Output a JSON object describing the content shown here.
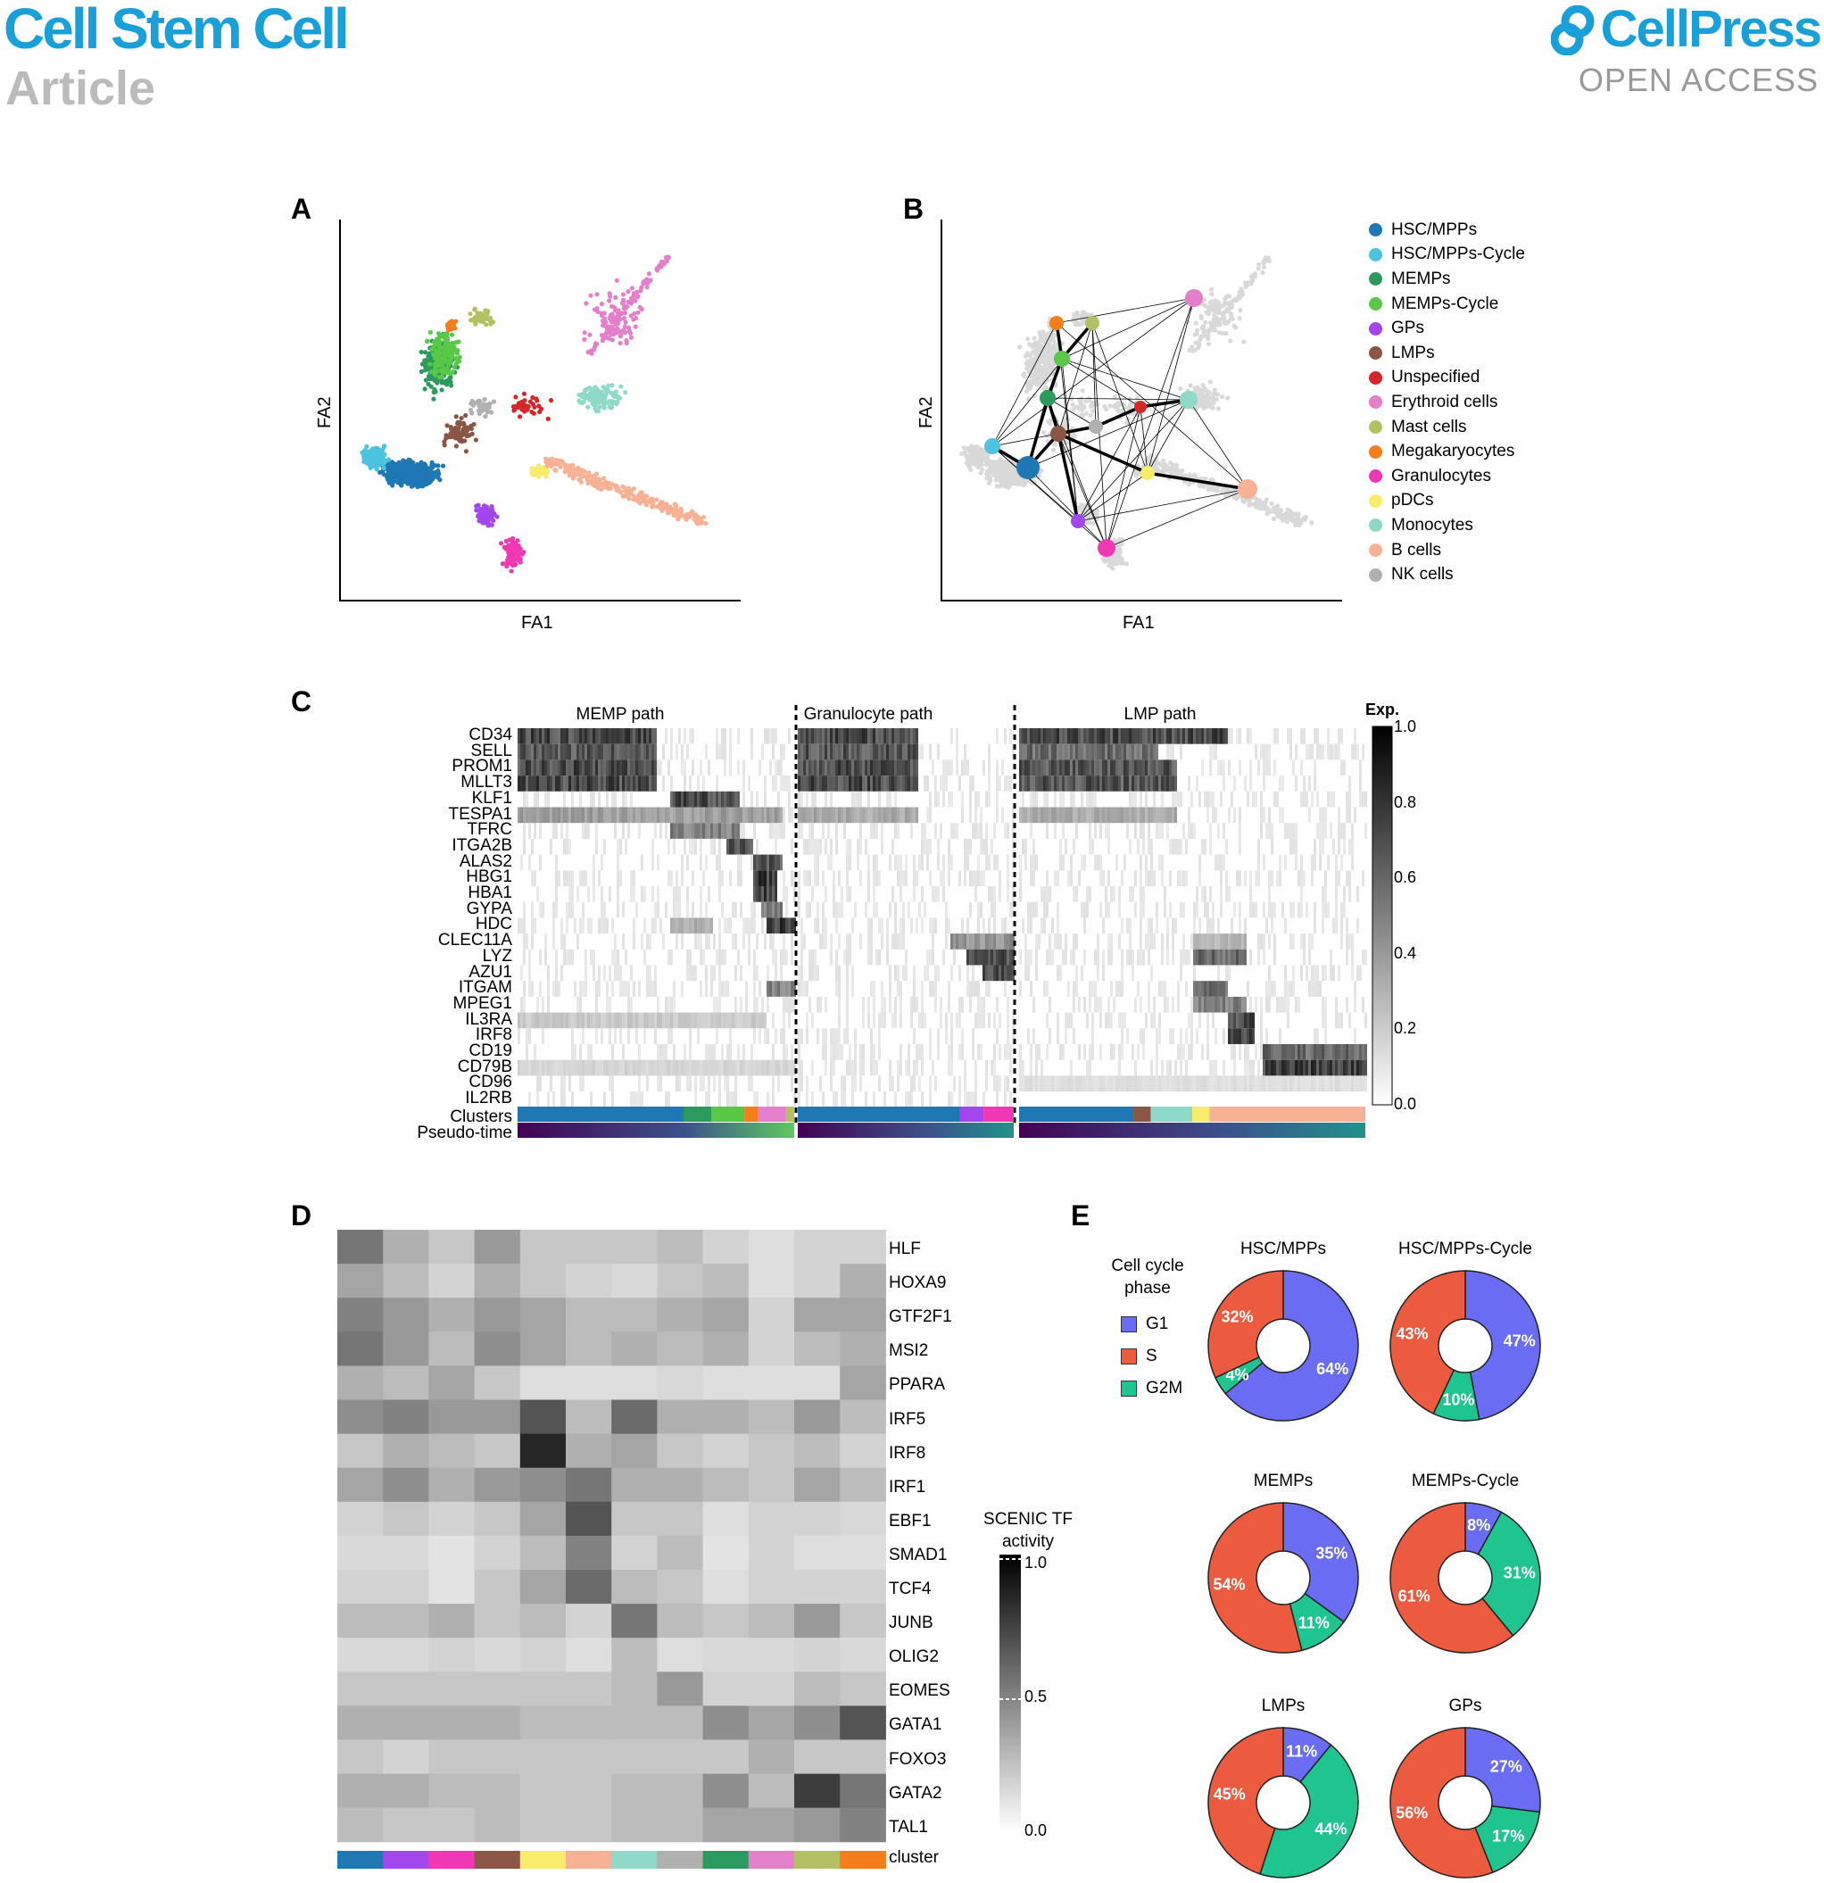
{
  "header": {
    "journal": "Cell Stem Cell",
    "section": "Article",
    "publisher": "CellPress",
    "access": "OPEN ACCESS"
  },
  "panels": {
    "a": "A",
    "b": "B",
    "c": "C",
    "d": "D",
    "e": "E"
  },
  "scatter": {
    "xlabel": "FA1",
    "ylabel": "FA2"
  },
  "clusters": [
    {
      "name": "HSC/MPPs",
      "color": "#1f77b4"
    },
    {
      "name": "HSC/MPPs-Cycle",
      "color": "#4cc3e0"
    },
    {
      "name": "MEMPs",
      "color": "#2a9a5e"
    },
    {
      "name": "MEMPs-Cycle",
      "color": "#59c847"
    },
    {
      "name": "GPs",
      "color": "#a446ee"
    },
    {
      "name": "LMPs",
      "color": "#8c5646"
    },
    {
      "name": "Unspecified",
      "color": "#d62728"
    },
    {
      "name": "Erythroid cells",
      "color": "#e47fcb"
    },
    {
      "name": "Mast cells",
      "color": "#b4c163"
    },
    {
      "name": "Megakaryocytes",
      "color": "#f57d1b"
    },
    {
      "name": "Granulocytes",
      "color": "#f038b4"
    },
    {
      "name": "pDCs",
      "color": "#f7ec6c"
    },
    {
      "name": "Monocytes",
      "color": "#8fd9c8"
    },
    {
      "name": "B cells",
      "color": "#f7b295"
    },
    {
      "name": "NK cells",
      "color": "#b0b0b0"
    }
  ],
  "heatmap_c": {
    "paths": [
      "MEMP path",
      "Granulocyte path",
      "LMP path"
    ],
    "genes": [
      "CD34",
      "SELL",
      "PROM1",
      "MLLT3",
      "KLF1",
      "TESPA1",
      "TFRC",
      "ITGA2B",
      "ALAS2",
      "HBG1",
      "HBA1",
      "GYPA",
      "HDC",
      "CLEC11A",
      "LYZ",
      "AZU1",
      "ITGAM",
      "MPEG1",
      "IL3RA",
      "IRF8",
      "CD19",
      "CD79B",
      "CD96",
      "IL2RB"
    ],
    "row_clusters": "Clusters",
    "row_pseudotime": "Pseudo-time",
    "colorbar_title": "Exp.",
    "colorbar_ticks": [
      "1.0",
      "0.8",
      "0.6",
      "0.4",
      "0.2",
      "0.0"
    ]
  },
  "heatmap_d": {
    "tfs": [
      "HLF",
      "HOXA9",
      "GTF2F1",
      "MSI2",
      "PPARA",
      "IRF5",
      "IRF8",
      "IRF1",
      "EBF1",
      "SMAD1",
      "TCF4",
      "JUNB",
      "OLIG2",
      "EOMES",
      "GATA1",
      "FOXO3",
      "GATA2",
      "TAL1"
    ],
    "row_cluster": "cluster",
    "colorbar_title": "SCENIC TF activity",
    "colorbar_ticks": [
      "1.0",
      "0.5",
      "0.0"
    ],
    "cluster_colors": [
      "#1f77b4",
      "#a446ee",
      "#f038b4",
      "#8c5646",
      "#f7ec6c",
      "#f7b295",
      "#8fd9c8",
      "#b0b0b0",
      "#2a9a5e",
      "#e47fcb",
      "#b4c163",
      "#f57d1b"
    ],
    "values": [
      [
        0.55,
        0.3,
        0.2,
        0.4,
        0.2,
        0.2,
        0.2,
        0.25,
        0.15,
        0.1,
        0.15,
        0.15
      ],
      [
        0.35,
        0.25,
        0.15,
        0.3,
        0.2,
        0.15,
        0.12,
        0.2,
        0.25,
        0.1,
        0.15,
        0.3
      ],
      [
        0.5,
        0.4,
        0.3,
        0.4,
        0.35,
        0.25,
        0.25,
        0.3,
        0.35,
        0.15,
        0.35,
        0.35
      ],
      [
        0.55,
        0.4,
        0.25,
        0.45,
        0.35,
        0.25,
        0.3,
        0.25,
        0.3,
        0.15,
        0.25,
        0.3
      ],
      [
        0.3,
        0.25,
        0.35,
        0.2,
        0.1,
        0.1,
        0.1,
        0.12,
        0.1,
        0.1,
        0.1,
        0.35
      ],
      [
        0.45,
        0.5,
        0.4,
        0.4,
        0.7,
        0.25,
        0.6,
        0.3,
        0.3,
        0.25,
        0.4,
        0.25
      ],
      [
        0.2,
        0.3,
        0.25,
        0.2,
        0.9,
        0.3,
        0.35,
        0.2,
        0.15,
        0.2,
        0.25,
        0.15
      ],
      [
        0.35,
        0.45,
        0.3,
        0.4,
        0.45,
        0.55,
        0.3,
        0.3,
        0.25,
        0.2,
        0.35,
        0.25
      ],
      [
        0.15,
        0.2,
        0.15,
        0.2,
        0.35,
        0.7,
        0.2,
        0.2,
        0.1,
        0.15,
        0.15,
        0.12
      ],
      [
        0.12,
        0.12,
        0.08,
        0.15,
        0.25,
        0.5,
        0.15,
        0.25,
        0.08,
        0.15,
        0.1,
        0.1
      ],
      [
        0.15,
        0.15,
        0.08,
        0.2,
        0.35,
        0.6,
        0.25,
        0.2,
        0.1,
        0.15,
        0.15,
        0.15
      ],
      [
        0.25,
        0.25,
        0.3,
        0.2,
        0.25,
        0.15,
        0.55,
        0.25,
        0.2,
        0.25,
        0.4,
        0.2
      ],
      [
        0.12,
        0.12,
        0.15,
        0.12,
        0.15,
        0.1,
        0.25,
        0.1,
        0.12,
        0.12,
        0.15,
        0.12
      ],
      [
        0.2,
        0.2,
        0.2,
        0.2,
        0.2,
        0.2,
        0.25,
        0.4,
        0.15,
        0.15,
        0.25,
        0.2
      ],
      [
        0.3,
        0.3,
        0.3,
        0.3,
        0.25,
        0.25,
        0.25,
        0.25,
        0.45,
        0.35,
        0.45,
        0.7
      ],
      [
        0.2,
        0.15,
        0.2,
        0.2,
        0.2,
        0.2,
        0.2,
        0.2,
        0.2,
        0.3,
        0.2,
        0.2
      ],
      [
        0.3,
        0.3,
        0.25,
        0.25,
        0.2,
        0.2,
        0.25,
        0.25,
        0.45,
        0.25,
        0.8,
        0.55
      ],
      [
        0.25,
        0.2,
        0.2,
        0.25,
        0.2,
        0.2,
        0.25,
        0.25,
        0.35,
        0.35,
        0.4,
        0.5
      ]
    ]
  },
  "cell_cycle": {
    "legend_title": "Cell cycle phase",
    "phases": [
      {
        "name": "G1",
        "color": "#6a6cf3"
      },
      {
        "name": "S",
        "color": "#ec5a40"
      },
      {
        "name": "G2M",
        "color": "#20c48f"
      }
    ],
    "pies": [
      {
        "title": "HSC/MPPs",
        "G1": 64,
        "S": 32,
        "G2M": 4,
        "labels": {
          "G1": "64%",
          "S": "32%",
          "G2M": "4%"
        }
      },
      {
        "title": "HSC/MPPs-Cycle",
        "G1": 47,
        "S": 43,
        "G2M": 10,
        "labels": {
          "G1": "47%",
          "S": "43%",
          "G2M": "10%"
        }
      },
      {
        "title": "MEMPs",
        "G1": 35,
        "S": 54,
        "G2M": 11,
        "labels": {
          "G1": "35%",
          "S": "54%",
          "G2M": "11%"
        }
      },
      {
        "title": "MEMPs-Cycle",
        "G1": 8,
        "S": 61,
        "G2M": 31,
        "labels": {
          "G1": "8%",
          "S": "61%",
          "G2M": "31%"
        }
      },
      {
        "title": "LMPs",
        "G1": 11,
        "S": 45,
        "G2M": 44,
        "labels": {
          "G1": "11%",
          "S": "45%",
          "G2M": "44%"
        }
      },
      {
        "title": "GPs",
        "G1": 27,
        "S": 56,
        "G2M": 17,
        "labels": {
          "G1": "27%",
          "S": "56%",
          "G2M": "17%"
        }
      }
    ]
  }
}
